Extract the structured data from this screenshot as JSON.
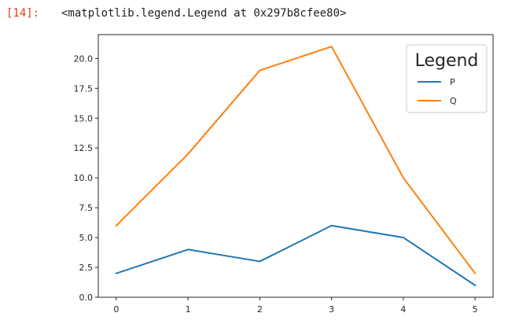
{
  "cell": {
    "prompt": "[14]:",
    "output": "<matplotlib.legend.Legend at 0x297b8cfee80>"
  },
  "chart_data": {
    "type": "line",
    "x": [
      0,
      1,
      2,
      3,
      4,
      5
    ],
    "series": [
      {
        "name": "P",
        "values": [
          2,
          4,
          3,
          6,
          5,
          1
        ],
        "color": "#1f77b4"
      },
      {
        "name": "Q",
        "values": [
          6,
          12,
          19,
          21,
          10,
          2
        ],
        "color": "#ff7f0e"
      }
    ],
    "xlim": [
      -0.25,
      5.25
    ],
    "ylim": [
      0,
      22
    ],
    "xticks": [
      0,
      1,
      2,
      3,
      4,
      5
    ],
    "xtick_labels": [
      "0",
      "1",
      "2",
      "3",
      "4",
      "5"
    ],
    "yticks": [
      0,
      2.5,
      5,
      7.5,
      10,
      12.5,
      15,
      17.5,
      20
    ],
    "ytick_labels": [
      "0.0",
      "2.5",
      "5.0",
      "7.5",
      "10.0",
      "12.5",
      "15.0",
      "17.5",
      "20.0"
    ],
    "grid": false,
    "legend": {
      "title": "Legend",
      "placement": "top-right"
    }
  }
}
